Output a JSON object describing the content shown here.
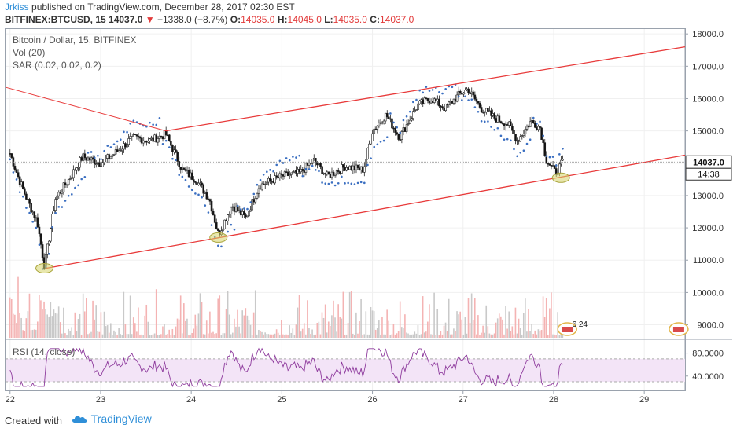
{
  "header": {
    "author": "Jrkiss",
    "published_text": "published on TradingView.com, December 28, 2017 02:30 EST",
    "symbol": "BITFINEX:BTCUSD, 15",
    "last": "14037.0",
    "change": "−1338.0 (−8.7%)",
    "o_label": "O:",
    "o_value": "14035.0",
    "h_label": "H:",
    "h_value": "14045.0",
    "l_label": "L:",
    "l_value": "14035.0",
    "c_label": "C:",
    "c_value": "14037.0"
  },
  "legend": {
    "title": "Bitcoin / Dollar, 15, BITFINEX",
    "vol": "Vol (20)",
    "sar": "SAR (0.02, 0.02, 0.2)",
    "rsi": "RSI (14, close)"
  },
  "footer": {
    "created_with": "Created with",
    "brand": "TradingView"
  },
  "colors": {
    "candle_up": "#3d3d3d",
    "candle_down": "#111111",
    "sar": "#3b6fc1",
    "trend": "#e83a3a",
    "rsi_line": "#8e3b9d",
    "rsi_band": "#f3e4f7",
    "vol_up": "#c9c9c9",
    "vol_down": "#f4b3b3",
    "marker": "#d6d36a"
  },
  "chart_data": {
    "type": "candlestick",
    "x_axis": {
      "min": 21.95,
      "max": 29.45,
      "tick_labels": [
        "22",
        "23",
        "24",
        "25",
        "26",
        "27",
        "28",
        "29"
      ],
      "tick_values": [
        22,
        23,
        24,
        25,
        26,
        27,
        28,
        29
      ]
    },
    "price_axis": {
      "min": 8600,
      "max": 18150,
      "tick_labels": [
        "18000.0",
        "17000.0",
        "16000.0",
        "15000.0",
        "14000.0",
        "13000.0",
        "12000.0",
        "11000.0",
        "10000.0",
        "9000.0"
      ],
      "tick_values": [
        18000,
        17000,
        16000,
        15000,
        14000,
        13000,
        12000,
        11000,
        10000,
        9000
      ]
    },
    "last_price": {
      "value": 14037.0,
      "label": "14037.0",
      "countdown": "14:38"
    },
    "price_path": [
      [
        22.0,
        14300
      ],
      [
        22.1,
        13500
      ],
      [
        22.2,
        12800
      ],
      [
        22.3,
        12200
      ],
      [
        22.38,
        10800
      ],
      [
        22.5,
        12900
      ],
      [
        22.65,
        13500
      ],
      [
        22.8,
        14200
      ],
      [
        23.0,
        14000
      ],
      [
        23.2,
        14400
      ],
      [
        23.35,
        14800
      ],
      [
        23.55,
        14700
      ],
      [
        23.72,
        14900
      ],
      [
        23.9,
        13800
      ],
      [
        24.05,
        13500
      ],
      [
        24.2,
        12900
      ],
      [
        24.3,
        11800
      ],
      [
        24.45,
        12700
      ],
      [
        24.6,
        12300
      ],
      [
        24.75,
        13300
      ],
      [
        25.0,
        13600
      ],
      [
        25.2,
        13700
      ],
      [
        25.35,
        14100
      ],
      [
        25.5,
        13600
      ],
      [
        25.7,
        13900
      ],
      [
        25.9,
        13800
      ],
      [
        26.0,
        15000
      ],
      [
        26.15,
        15500
      ],
      [
        26.3,
        14800
      ],
      [
        26.5,
        15800
      ],
      [
        26.65,
        16000
      ],
      [
        26.8,
        15700
      ],
      [
        26.95,
        16100
      ],
      [
        27.05,
        16300
      ],
      [
        27.2,
        15700
      ],
      [
        27.35,
        15400
      ],
      [
        27.5,
        15200
      ],
      [
        27.6,
        14700
      ],
      [
        27.75,
        15300
      ],
      [
        27.85,
        15100
      ],
      [
        27.92,
        14100
      ],
      [
        28.02,
        13700
      ],
      [
        28.1,
        14037
      ]
    ],
    "trendlines": [
      {
        "from": [
          22.4,
          10750
        ],
        "to": [
          29.45,
          14250
        ]
      },
      {
        "from": [
          23.72,
          15000
        ],
        "to": [
          29.45,
          17600
        ]
      },
      {
        "from": [
          21.95,
          16350
        ],
        "to": [
          23.72,
          15000
        ]
      }
    ],
    "highlight_markers": [
      {
        "x": 22.38,
        "y": 10750
      },
      {
        "x": 24.3,
        "y": 11700
      },
      {
        "x": 28.08,
        "y": 13550
      }
    ],
    "events": [
      {
        "x": 28.15,
        "label": "6 24"
      },
      {
        "x": 29.38,
        "label": ""
      }
    ],
    "rsi_axis": {
      "min": 15,
      "max": 100,
      "tick_labels": [
        "80.0000",
        "40.0000"
      ],
      "tick_values": [
        80,
        40
      ],
      "band": [
        30,
        70
      ]
    }
  }
}
